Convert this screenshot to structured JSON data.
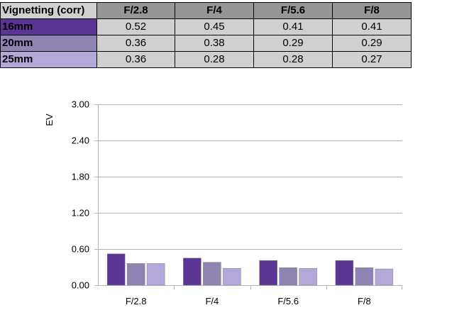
{
  "table": {
    "corner_label": "Vignetting (corr)",
    "columns": [
      "F/2.8",
      "F/4",
      "F/5.6",
      "F/8"
    ],
    "rows": [
      {
        "label": "16mm",
        "color": "#5b3593",
        "values": [
          "0.52",
          "0.45",
          "0.41",
          "0.41"
        ]
      },
      {
        "label": "20mm",
        "color": "#8f83b4",
        "values": [
          "0.36",
          "0.38",
          "0.29",
          "0.29"
        ]
      },
      {
        "label": "25mm",
        "color": "#b4a7d9",
        "values": [
          "0.36",
          "0.28",
          "0.28",
          "0.27"
        ]
      }
    ]
  },
  "chart_data": {
    "type": "bar",
    "title": "",
    "xlabel": "",
    "ylabel": "EV",
    "categories": [
      "F/2.8",
      "F/4",
      "F/5.6",
      "F/8"
    ],
    "ylim": [
      0,
      3.0
    ],
    "yticks": [
      "0.00",
      "0.60",
      "1.20",
      "1.80",
      "2.40",
      "3.00"
    ],
    "grid": true,
    "legend": "none",
    "series": [
      {
        "name": "16mm",
        "color": "#5b3593",
        "values": [
          0.52,
          0.45,
          0.41,
          0.41
        ]
      },
      {
        "name": "20mm",
        "color": "#8f83b4",
        "values": [
          0.36,
          0.38,
          0.29,
          0.29
        ]
      },
      {
        "name": "25mm",
        "color": "#b4a7d9",
        "values": [
          0.36,
          0.28,
          0.28,
          0.27
        ]
      }
    ]
  }
}
